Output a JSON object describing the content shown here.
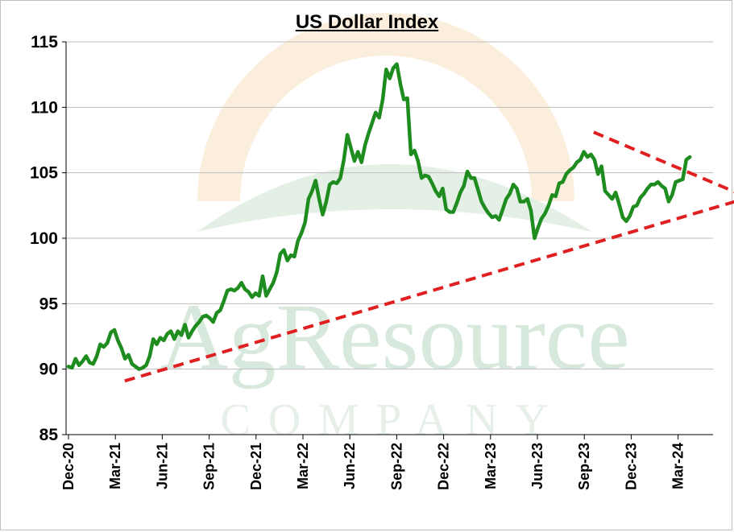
{
  "chart_data": {
    "type": "line",
    "title": "US Dollar Index",
    "xlabel": "",
    "ylabel": "",
    "ylim": [
      85,
      115
    ],
    "yticks": [
      85,
      90,
      95,
      100,
      105,
      110,
      115
    ],
    "grid": "horizontal",
    "x_tick_labels": [
      "Dec-20",
      "Mar-21",
      "Jun-21",
      "Sep-21",
      "Dec-21",
      "Mar-22",
      "Jun-22",
      "Sep-22",
      "Dec-22",
      "Mar-23",
      "Jun-23",
      "Sep-23",
      "Dec-23",
      "Mar-24"
    ],
    "series": [
      {
        "color": "#1e8c1e",
        "values": [
          90.2,
          90.1,
          90.8,
          90.3,
          90.6,
          91.0,
          90.5,
          90.4,
          91.0,
          91.9,
          91.7,
          92.0,
          92.8,
          93.0,
          92.2,
          91.6,
          90.8,
          91.1,
          90.4,
          90.2,
          90.0,
          90.1,
          90.3,
          91.0,
          92.3,
          91.9,
          92.4,
          92.2,
          92.7,
          92.9,
          92.3,
          92.9,
          92.6,
          93.4,
          92.4,
          92.9,
          93.3,
          93.6,
          94.0,
          94.1,
          93.9,
          93.6,
          94.3,
          94.5,
          95.2,
          96.0,
          96.1,
          96.0,
          96.2,
          96.6,
          96.1,
          95.9,
          95.5,
          95.8,
          95.6,
          97.1,
          95.6,
          96.1,
          96.6,
          97.4,
          98.8,
          99.1,
          98.3,
          98.7,
          98.6,
          99.8,
          100.4,
          101.2,
          103.0,
          103.6,
          104.4,
          103.0,
          101.8,
          102.8,
          104.1,
          104.3,
          104.2,
          104.6,
          106.0,
          107.9,
          106.9,
          105.9,
          106.6,
          105.8,
          107.1,
          108.0,
          108.8,
          109.6,
          109.2,
          110.6,
          112.9,
          112.2,
          113.0,
          113.3,
          111.8,
          110.6,
          110.7,
          106.4,
          106.7,
          105.9,
          104.6,
          104.8,
          104.7,
          104.2,
          103.6,
          103.2,
          103.8,
          102.2,
          102.0,
          102.0,
          102.7,
          103.5,
          104.0,
          105.1,
          104.6,
          104.6,
          103.7,
          102.8,
          102.3,
          101.9,
          101.6,
          101.7,
          101.4,
          102.2,
          103.0,
          103.4,
          104.1,
          103.8,
          102.8,
          102.8,
          103.0,
          102.1,
          100.0,
          100.8,
          101.5,
          101.9,
          102.5,
          103.3,
          103.2,
          104.2,
          104.3,
          104.9,
          105.2,
          105.4,
          105.8,
          106.0,
          106.6,
          106.2,
          106.4,
          106.0,
          104.9,
          105.5,
          103.6,
          103.3,
          103.0,
          103.5,
          102.6,
          101.6,
          101.3,
          101.7,
          102.4,
          102.5,
          103.1,
          103.4,
          103.8,
          104.1,
          104.1,
          104.3,
          104.0,
          103.8,
          102.8,
          103.3,
          104.3,
          104.4,
          104.5,
          106.0,
          106.2
        ]
      }
    ],
    "trendlines": [
      {
        "color": "#e02020",
        "style": "dashed",
        "from": [
          1.2,
          89.1
        ],
        "to": [
          14.5,
          103.1
        ]
      },
      {
        "color": "#e02020",
        "style": "dashed",
        "from": [
          11.2,
          108.1
        ],
        "to": [
          14.5,
          103.1
        ]
      }
    ],
    "watermark_text": "AgResource",
    "watermark_subtext": "COMPANY"
  }
}
